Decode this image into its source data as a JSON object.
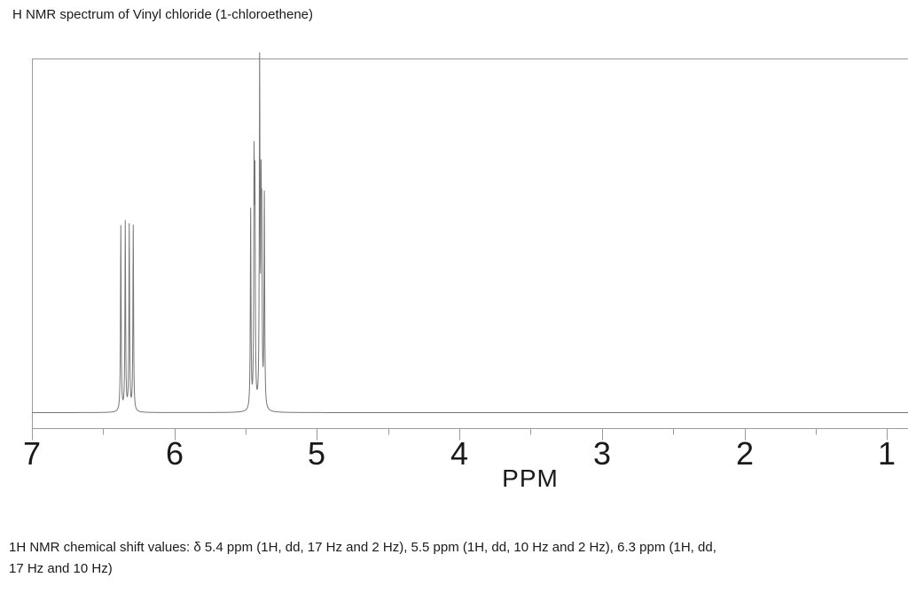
{
  "page": {
    "title": "H NMR spectrum of Vinyl chloride (1-chloroethene)"
  },
  "axis": {
    "label": "PPM",
    "major_tick_labels": [
      "7",
      "6",
      "5",
      "4",
      "3",
      "2",
      "1"
    ],
    "minor_ticks_ppm": [
      6.5,
      5.5,
      4.5,
      3.5,
      2.5,
      1.5
    ]
  },
  "caption": {
    "line1": "1H NMR chemical shift values: δ 5.4 ppm (1H, dd, 17 Hz and 2 Hz), 5.5 ppm (1H, dd, 10 Hz and 2 Hz), 6.3 ppm (1H, dd,",
    "line2": "17 Hz and 10 Hz)"
  },
  "colors": {
    "text": "#1a1a1a",
    "frame": "#9a9a9a",
    "tick": "#9a9a9a",
    "trace": "#757575",
    "background": "#ffffff"
  },
  "chart_data": {
    "type": "line",
    "title": "H NMR spectrum of Vinyl chloride (1-chloroethene)",
    "xlabel": "PPM",
    "ylabel": "",
    "x_axis": {
      "visible_max": 7.0,
      "visible_min": 0.85,
      "reversed": true,
      "major_ticks": [
        7,
        6,
        5,
        4,
        3,
        2,
        1
      ],
      "minor_tick_step": 0.5
    },
    "grid": false,
    "legend": false,
    "peaks": [
      {
        "ppm": 6.376,
        "rel_height": 0.55
      },
      {
        "ppm": 6.345,
        "rel_height": 0.56
      },
      {
        "ppm": 6.317,
        "rel_height": 0.55
      },
      {
        "ppm": 6.289,
        "rel_height": 0.55
      },
      {
        "ppm": 5.465,
        "rel_height": 0.59
      },
      {
        "ppm": 5.441,
        "rel_height": 0.68
      },
      {
        "ppm": 5.435,
        "rel_height": 0.61
      },
      {
        "ppm": 5.402,
        "rel_height": 1.0
      },
      {
        "ppm": 5.392,
        "rel_height": 0.55
      },
      {
        "ppm": 5.387,
        "rel_height": 0.48
      },
      {
        "ppm": 5.369,
        "rel_height": 0.63
      }
    ],
    "multiplets": [
      {
        "shift_ppm": 6.3,
        "integration": "1H",
        "multiplicity": "dd",
        "coupling_Hz": [
          17,
          10
        ]
      },
      {
        "shift_ppm": 5.5,
        "integration": "1H",
        "multiplicity": "dd",
        "coupling_Hz": [
          10,
          2
        ]
      },
      {
        "shift_ppm": 5.4,
        "integration": "1H",
        "multiplicity": "dd",
        "coupling_Hz": [
          17,
          2
        ]
      }
    ]
  }
}
